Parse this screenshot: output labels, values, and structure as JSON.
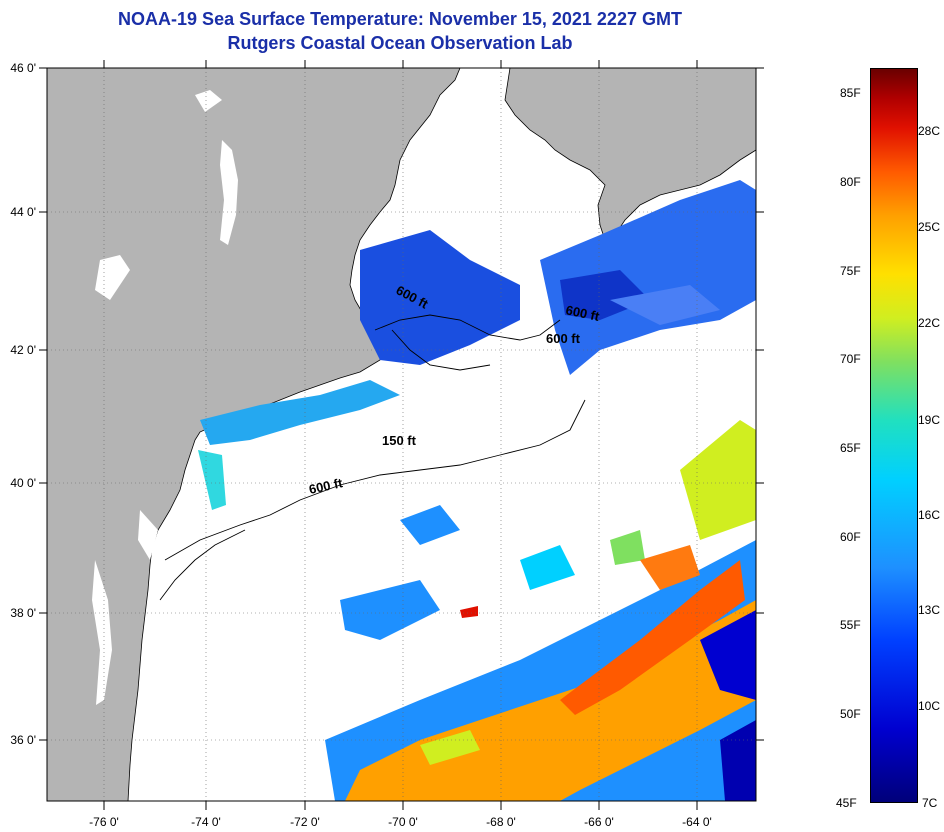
{
  "title": {
    "line1": "NOAA-19 Sea Surface Temperature:  November 15, 2021 2227 GMT",
    "line2": "Rutgers Coastal Ocean Observation Lab"
  },
  "map": {
    "lon_ticks": [
      "-76 0'",
      "-74 0'",
      "-72 0'",
      "-70 0'",
      "-68 0'",
      "-66 0'",
      "-64 0'"
    ],
    "lat_ticks": [
      "46 0'",
      "44 0'",
      "42 0'",
      "40 0'",
      "38 0'",
      "36 0'"
    ],
    "contour_labels": [
      "600 ft",
      "600 ft",
      "600 ft",
      "150 ft",
      "600 ft"
    ],
    "colors": {
      "land": "#b4b4b4",
      "cloud": "#ffffff",
      "grid": "#000000"
    }
  },
  "colorbar": {
    "fahrenheit": [
      "85F",
      "80F",
      "75F",
      "70F",
      "65F",
      "60F",
      "55F",
      "50F",
      "45F"
    ],
    "celsius": [
      "28C",
      "25C",
      "22C",
      "19C",
      "16C",
      "13C",
      "10C",
      "7C"
    ],
    "range_f": [
      45,
      87
    ]
  }
}
